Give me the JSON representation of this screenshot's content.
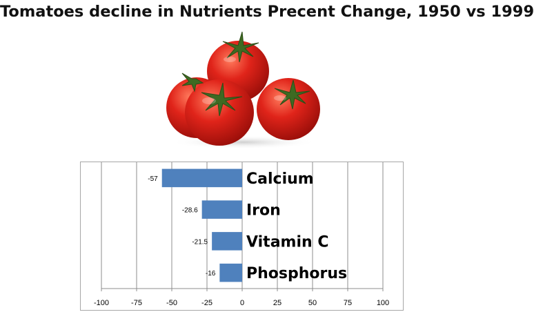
{
  "title": "Tomatoes decline in Nutrients Precent Change, 1950 vs 1999",
  "illustration": {
    "icon": "tomatoes-photo"
  },
  "chart_data": {
    "type": "bar",
    "orientation": "horizontal",
    "categories": [
      "Calcium",
      "Iron",
      "Vitamin C",
      "Phosphorus"
    ],
    "values": [
      -57,
      -28.6,
      -21.5,
      -16
    ],
    "data_labels": [
      "-57",
      "-28.6",
      "-21.5",
      "-16"
    ],
    "xlim": [
      -100,
      100
    ],
    "xticks": [
      -100,
      -75,
      -50,
      -25,
      0,
      25,
      50,
      75,
      100
    ],
    "xtick_labels": [
      "-100",
      "-75",
      "-50",
      "-25",
      "0",
      "25",
      "50",
      "75",
      "100"
    ],
    "grid": true,
    "legend": "none",
    "bar_color": "#4f81bd",
    "grid_color": "#8c8c8c"
  }
}
